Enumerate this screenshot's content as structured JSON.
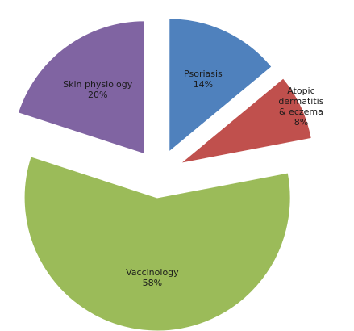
{
  "chart_data": {
    "type": "pie",
    "categories": [
      "Psoriasis",
      "Atopic dermatitis & eczema",
      "Vaccinology",
      "Skin physiology"
    ],
    "values": [
      14,
      8,
      58,
      20
    ],
    "value_labels": [
      "14%",
      "8%",
      "58%",
      "20%"
    ],
    "colors": [
      "#4f81bd",
      "#c0504d",
      "#9bbb59",
      "#8064a2"
    ],
    "exploded": true
  }
}
